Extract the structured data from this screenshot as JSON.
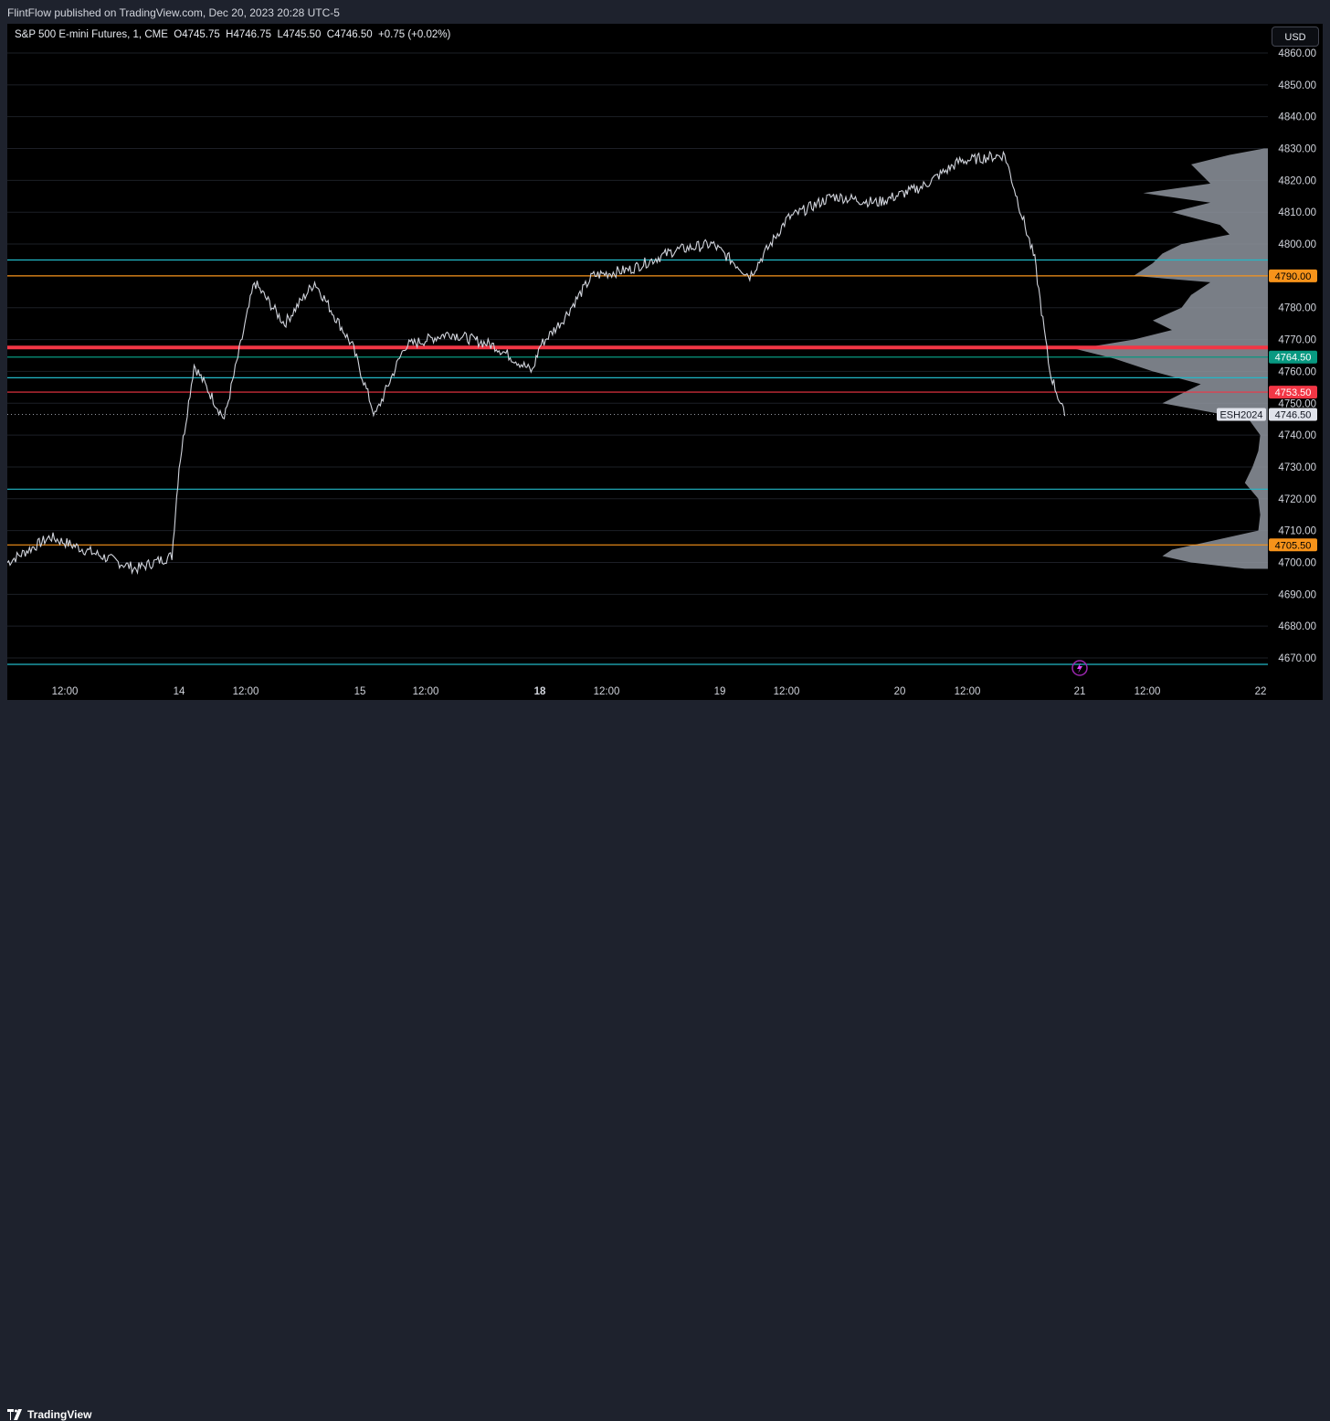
{
  "header": {
    "published_text": "FlintFlow published on TradingView.com, Dec 20, 2023 20:28 UTC-5"
  },
  "symbol": {
    "info": "S&P 500 E-mini Futures, 1, CME  O4745.75  H4746.75  L4745.50  C4746.50  +0.75 (+0.02%)"
  },
  "currency_button": "USD",
  "footer": {
    "logo_text": "TradingView"
  },
  "colors": {
    "background": "#000000",
    "price_line": "#d1d4dc",
    "cyan_level": "#22b8c7",
    "orange_level": "#f7931a",
    "red_level": "#f23645",
    "green_level": "#089981",
    "volume_profile": "#8e949e",
    "grid": "#1c1f26"
  },
  "chart_data": {
    "type": "line",
    "title": "S&P 500 E-mini Futures, 1, CME",
    "y_axis": {
      "ylim": [
        4665,
        4865
      ],
      "ticks": [
        "4670.00",
        "4680.00",
        "4690.00",
        "4700.00",
        "4710.00",
        "4720.00",
        "4730.00",
        "4740.00",
        "4750.00",
        "4760.00",
        "4770.00",
        "4780.00",
        "4790.00",
        "4800.00",
        "4810.00",
        "4820.00",
        "4830.00",
        "4840.00",
        "4850.00",
        "4860.00"
      ]
    },
    "x_axis": {
      "ticks": [
        "12:00",
        "14",
        "12:00",
        "15",
        "12:00",
        "18",
        "12:00",
        "19",
        "12:00",
        "20",
        "12:00",
        "21",
        "12:00",
        "22"
      ],
      "bold_tick": "18"
    },
    "price_series": {
      "name": "ESH2024",
      "x": [
        "13 00:00",
        "13 06:00",
        "13 12:00",
        "13 18:00",
        "13 23:00",
        "14 00:00",
        "14 02:00",
        "14 06:00",
        "14 10:00",
        "14 14:00",
        "14 18:00",
        "14 23:00",
        "15 02:00",
        "15 06:00",
        "15 12:00",
        "15 18:00",
        "15 23:00",
        "18 00:00",
        "18 03:00",
        "18 07:00",
        "18 12:00",
        "18 18:00",
        "18 23:00",
        "19 04:00",
        "19 09:00",
        "19 15:00",
        "19 21:00",
        "20 03:00",
        "20 08:00",
        "20 14:00",
        "20 18:00",
        "20 20:00",
        "20 22:00"
      ],
      "y": [
        4700,
        4708,
        4703,
        4698,
        4702,
        4730,
        4762,
        4745,
        4788,
        4775,
        4788,
        4768,
        4746,
        4768,
        4772,
        4768,
        4760,
        4768,
        4776,
        4790,
        4792,
        4798,
        4800,
        4790,
        4808,
        4815,
        4813,
        4818,
        4826,
        4828,
        4795,
        4760,
        4746
      ]
    },
    "levels": [
      {
        "value": 4795.0,
        "color": "cyan"
      },
      {
        "value": 4790.0,
        "color": "orange",
        "label": "4790.00"
      },
      {
        "value": 4767.5,
        "color": "red"
      },
      {
        "value": 4764.5,
        "color": "green",
        "label": "4764.50"
      },
      {
        "value": 4758.0,
        "color": "cyan"
      },
      {
        "value": 4753.5,
        "color": "red",
        "label": "4753.50"
      },
      {
        "value": 4723.0,
        "color": "cyan"
      },
      {
        "value": 4705.5,
        "color": "orange",
        "label": "4705.50"
      },
      {
        "value": 4668.0,
        "color": "cyan"
      }
    ],
    "last_price": {
      "value": 4746.5,
      "label": "4746.50",
      "symbol": "ESH2024"
    },
    "volume_profile": {
      "prices": [
        4698,
        4700,
        4702,
        4704,
        4706,
        4708,
        4710,
        4715,
        4720,
        4725,
        4730,
        4735,
        4740,
        4745,
        4750,
        4753,
        4756,
        4760,
        4764,
        4767,
        4770,
        4773,
        4776,
        4780,
        4784,
        4788,
        4790,
        4794,
        4797,
        4800,
        4803,
        4806,
        4810,
        4813,
        4816,
        4819,
        4822,
        4825,
        4828,
        4830
      ],
      "volumes": [
        0.12,
        0.4,
        0.55,
        0.5,
        0.35,
        0.2,
        0.05,
        0.04,
        0.05,
        0.12,
        0.08,
        0.05,
        0.04,
        0.1,
        0.55,
        0.45,
        0.35,
        0.6,
        0.8,
        1.0,
        0.7,
        0.5,
        0.6,
        0.45,
        0.4,
        0.3,
        0.7,
        0.6,
        0.55,
        0.45,
        0.2,
        0.25,
        0.5,
        0.3,
        0.65,
        0.3,
        0.35,
        0.4,
        0.2,
        0.02
      ]
    }
  }
}
